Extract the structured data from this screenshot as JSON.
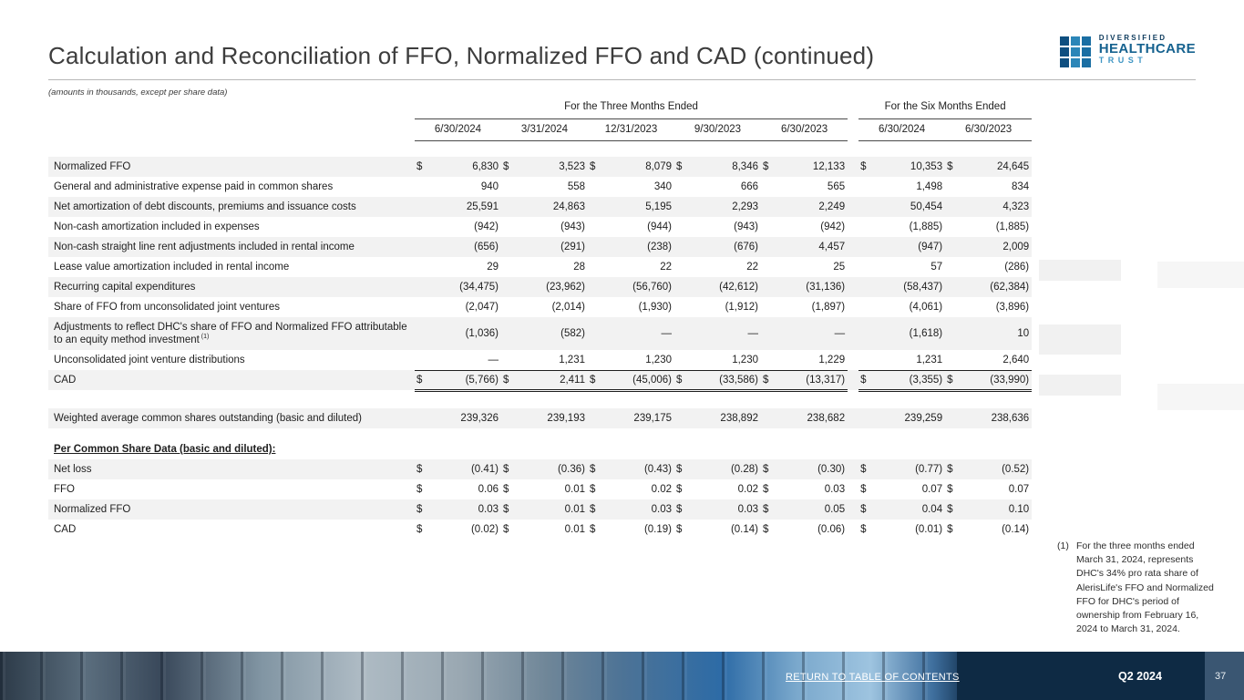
{
  "page": {
    "title": "Calculation and Reconciliation of FFO, Normalized FFO and CAD (continued)",
    "subtitle": "(amounts in thousands, except per share data)",
    "footer_link": "RETURN TO TABLE OF CONTENTS",
    "quarter": "Q2 2024",
    "page_number": "37"
  },
  "logo": {
    "line1": "DIVERSIFIED",
    "line2": "HEALTHCARE",
    "line3": "TRUST"
  },
  "table": {
    "group_headers": [
      "For the Three Months Ended",
      "For the Six Months Ended"
    ],
    "columns": [
      "6/30/2024",
      "3/31/2024",
      "12/31/2023",
      "9/30/2023",
      "6/30/2023",
      "6/30/2024",
      "6/30/2023"
    ],
    "rows": [
      {
        "type": "spacer",
        "h": 18
      },
      {
        "label": "Normalized FFO",
        "dollar": true,
        "stripe": true,
        "values": [
          "6,830",
          "3,523",
          "8,079",
          "8,346",
          "12,133",
          "10,353",
          "24,645"
        ]
      },
      {
        "label": "General and administrative expense paid in common shares",
        "values": [
          "940",
          "558",
          "340",
          "666",
          "565",
          "1,498",
          "834"
        ]
      },
      {
        "label": "Net amortization of debt discounts, premiums and issuance costs",
        "stripe": true,
        "values": [
          "25,591",
          "24,863",
          "5,195",
          "2,293",
          "2,249",
          "50,454",
          "4,323"
        ]
      },
      {
        "label": "Non-cash amortization included in expenses",
        "values": [
          "(942)",
          "(943)",
          "(944)",
          "(943)",
          "(942)",
          "(1,885)",
          "(1,885)"
        ]
      },
      {
        "label": "Non-cash straight line rent adjustments included in rental income",
        "stripe": true,
        "values": [
          "(656)",
          "(291)",
          "(238)",
          "(676)",
          "4,457",
          "(947)",
          "2,009"
        ]
      },
      {
        "label": "Lease value amortization included in rental income",
        "values": [
          "29",
          "28",
          "22",
          "22",
          "25",
          "57",
          "(286)"
        ]
      },
      {
        "label": "Recurring capital expenditures",
        "stripe": true,
        "values": [
          "(34,475)",
          "(23,962)",
          "(56,760)",
          "(42,612)",
          "(31,136)",
          "(58,437)",
          "(62,384)"
        ]
      },
      {
        "label": "Share of FFO from unconsolidated joint ventures",
        "values": [
          "(2,047)",
          "(2,014)",
          "(1,930)",
          "(1,912)",
          "(1,897)",
          "(4,061)",
          "(3,896)"
        ]
      },
      {
        "label": "Adjustments to reflect DHC's share of FFO and Normalized FFO attributable to an equity method investment",
        "sup": "(1)",
        "stripe": true,
        "tall": true,
        "values": [
          "(1,036)",
          "(582)",
          "—",
          "—",
          "—",
          "(1,618)",
          "10"
        ]
      },
      {
        "label": "Unconsolidated joint venture distributions",
        "underline": "single",
        "values": [
          "—",
          "1,231",
          "1,230",
          "1,230",
          "1,229",
          "1,231",
          "2,640"
        ]
      },
      {
        "label": "CAD",
        "dollar": true,
        "stripe": true,
        "underline": "double",
        "values": [
          "(5,766)",
          "2,411",
          "(45,006)",
          "(33,586)",
          "(13,317)",
          "(3,355)",
          "(33,990)"
        ]
      },
      {
        "type": "spacer",
        "h": 20
      },
      {
        "label": "Weighted average common shares outstanding (basic and diluted)",
        "stripe": true,
        "values": [
          "239,326",
          "239,193",
          "239,175",
          "238,892",
          "238,682",
          "239,259",
          "238,636"
        ]
      },
      {
        "type": "spacer",
        "h": 12
      },
      {
        "label": "Per Common Share Data (basic and diluted):",
        "header": true
      },
      {
        "label": "Net loss",
        "dollar": true,
        "stripe": true,
        "values": [
          "(0.41)",
          "(0.36)",
          "(0.43)",
          "(0.28)",
          "(0.30)",
          "(0.77)",
          "(0.52)"
        ]
      },
      {
        "label": "FFO",
        "dollar": true,
        "values": [
          "0.06",
          "0.01",
          "0.02",
          "0.02",
          "0.03",
          "0.07",
          "0.07"
        ]
      },
      {
        "label": "Normalized FFO",
        "dollar": true,
        "stripe": true,
        "values": [
          "0.03",
          "0.01",
          "0.03",
          "0.03",
          "0.05",
          "0.04",
          "0.10"
        ]
      },
      {
        "label": "CAD",
        "dollar": true,
        "values": [
          "(0.02)",
          "0.01",
          "(0.19)",
          "(0.14)",
          "(0.06)",
          "(0.01)",
          "(0.14)"
        ]
      }
    ]
  },
  "footnote": {
    "marker": "(1)",
    "text": "For the three months ended March 31, 2024, represents DHC's 34% pro rata share of AlerisLife's FFO and Normalized FFO for DHC's period of ownership from February 16, 2024 to March 31, 2024."
  }
}
